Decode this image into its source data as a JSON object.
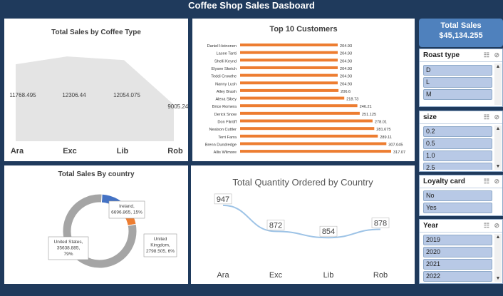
{
  "dashboard": {
    "title": "Coffee Shop Sales Dasboard"
  },
  "kpi": {
    "label": "Total Sales",
    "value": "$45,134.255"
  },
  "slicers": {
    "roast": {
      "title": "Roast type",
      "items": [
        "D",
        "L",
        "M"
      ]
    },
    "size": {
      "title": "size",
      "items": [
        "0.2",
        "0.5",
        "1.0",
        "2.5"
      ]
    },
    "loyalty": {
      "title": "Loyalty card",
      "items": [
        "No",
        "Yes"
      ]
    },
    "year": {
      "title": "Year",
      "items": [
        "2019",
        "2020",
        "2021",
        "2022"
      ]
    }
  },
  "chart_data": [
    {
      "type": "area",
      "title": "Total Sales by Coffee Type",
      "categories": [
        "Ara",
        "Exc",
        "Lib",
        "Rob"
      ],
      "values": [
        11768.495,
        12306.44,
        12054.075,
        9005.245
      ],
      "labels": [
        "11768.495",
        "12306.44",
        "12054.075",
        "9005.245"
      ]
    },
    {
      "type": "bar",
      "title": "Top 10 Customers",
      "categories": [
        "Daniel Heinonen",
        "Lacee Tanti",
        "Shelli Keynd",
        "Elysee Sketch",
        "Teddi Crowthe",
        "Nanny Lush",
        "Alley Brash",
        "Alexa Sibey",
        "Brice Romera",
        "Derick Snow",
        "Don Flintiff",
        "Nealson Cuttler",
        "Terri Farra",
        "Brenn Dundredge",
        "Allis Wilmore"
      ],
      "values": [
        204.93,
        204.93,
        204.93,
        204.93,
        204.93,
        204.93,
        206.6,
        218.73,
        246.21,
        251.125,
        278.01,
        281.675,
        289.11,
        307.045,
        317.07
      ],
      "labels": [
        "204.93",
        "204.93",
        "204.93",
        "204.93",
        "204.93",
        "204.93",
        "206.6",
        "218.73",
        "246.21",
        "251.125",
        "278.01",
        "281.675",
        "289.11",
        "307.045",
        "317.07"
      ],
      "color": "#ed7d31"
    },
    {
      "type": "pie",
      "title": "Total Sales By country",
      "slices": [
        {
          "name": "Ireland",
          "value": 6696.865,
          "pct": 15,
          "color": "#4472c4",
          "label": [
            "Ireland,",
            "6696.865, 15%"
          ]
        },
        {
          "name": "United Kingdom",
          "value": 2798.505,
          "pct": 6,
          "color": "#ed7d31",
          "label": [
            "United",
            "Kingdom,",
            "2798.505, 6%"
          ]
        },
        {
          "name": "United States",
          "value": 35638.885,
          "pct": 79,
          "color": "#a5a5a5",
          "label": [
            "United States,",
            "35638.885,",
            "79%"
          ]
        }
      ]
    },
    {
      "type": "line",
      "title": "Total Quantity Ordered by Country",
      "categories": [
        "Ara",
        "Exc",
        "Lib",
        "Rob"
      ],
      "values": [
        947,
        872,
        854,
        878
      ],
      "labels": [
        "947",
        "872",
        "854",
        "878"
      ],
      "color": "#9dc3e6"
    }
  ]
}
